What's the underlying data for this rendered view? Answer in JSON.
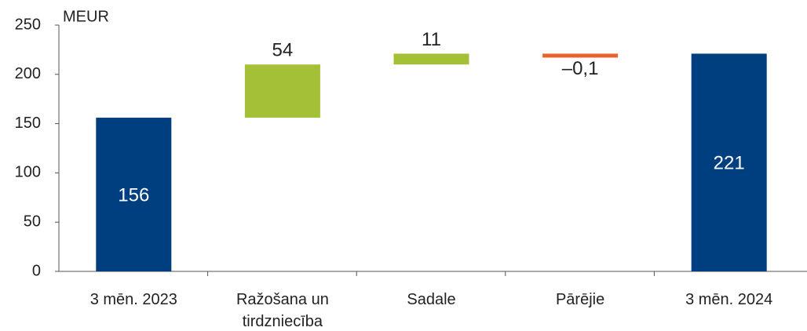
{
  "chart_data": {
    "type": "waterfall",
    "y_label": "MEUR",
    "categories": [
      "3 mēn. 2023",
      "Ražošana un tirdzniecība",
      "Sadale",
      "Pārējie",
      "3 mēn. 2024"
    ],
    "values": [
      156,
      54,
      11,
      -0.1,
      221
    ],
    "value_labels": [
      "156",
      "54",
      "11",
      "–0,1",
      "221"
    ],
    "total_color": "#003f7f",
    "increase_color": "#a4c037",
    "decrease_color": "#e8622a",
    "ylim": [
      0,
      250
    ],
    "yticks": [
      0,
      50,
      100,
      150,
      200,
      250
    ]
  }
}
